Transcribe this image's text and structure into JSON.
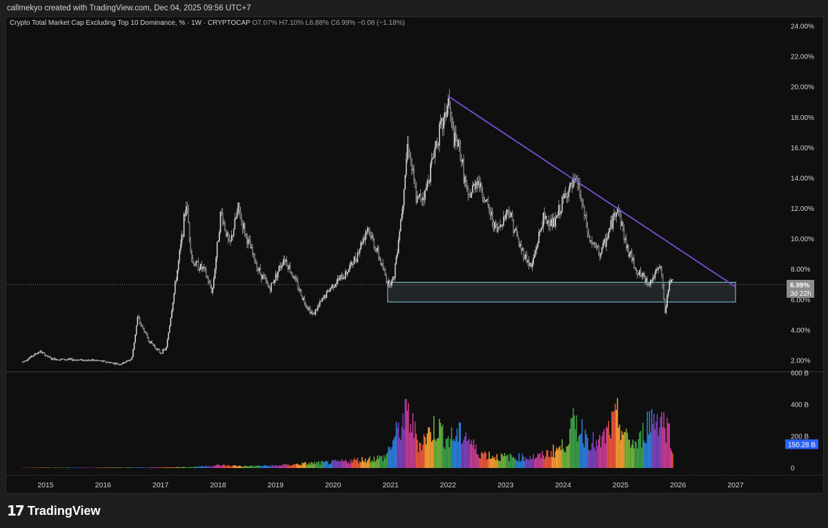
{
  "header": {
    "credit": "callmekyo created with TradingView.com, Dec 04, 2025 09:56 UTC+7"
  },
  "legend": {
    "title": "Crypto Total Market Cap Excluding Top 10 Dominance, % · 1W · CRYPTOCAP",
    "o_key": "O",
    "o_val": "7.07%",
    "h_key": "H",
    "h_val": "7.10%",
    "l_key": "L",
    "l_val": "6.88%",
    "c_key": "C",
    "c_val": "6.99%",
    "change": "−0.08 (−1.18%)"
  },
  "price_badge": {
    "value": "6.99%",
    "countdown": "3d 22h"
  },
  "volume_badge": {
    "value": "150.28 B"
  },
  "footer": {
    "brand": "TradingView"
  },
  "colors": {
    "background": "#0f0f0f",
    "candles": "#c8c8c8",
    "trendline": "#7b4fd6",
    "zone_border": "#7fd3e6",
    "zone_fill": "#2b2f31",
    "badge_price": "#8c8c8c",
    "badge_volume": "#2962ff",
    "volume_palette": [
      "#7b3fb5",
      "#c13a8f",
      "#e5533d",
      "#f29a2e",
      "#6fae3a",
      "#3a9a4a",
      "#2a7bd6"
    ]
  },
  "chart_data": {
    "type": "candlestick",
    "title": "Crypto Total Market Cap Excluding Top 10 Dominance, %",
    "interval": "1W",
    "price_axis": {
      "ticks": [
        "24.00%",
        "22.00%",
        "20.00%",
        "18.00%",
        "16.00%",
        "14.00%",
        "12.00%",
        "10.00%",
        "8.00%",
        "6.00%",
        "4.00%",
        "2.00%"
      ],
      "ylim": [
        1.0,
        24.6
      ]
    },
    "volume_axis": {
      "ticks": [
        "600 B",
        "400 B",
        "200 B",
        "0"
      ],
      "ylim": [
        0,
        610
      ]
    },
    "time_axis": {
      "ticks": [
        "2015",
        "2016",
        "2017",
        "2018",
        "2019",
        "2020",
        "2021",
        "2022",
        "2023",
        "2024",
        "2025",
        "2026",
        "2027"
      ]
    },
    "price_path": [
      [
        2014.6,
        1.9
      ],
      [
        2014.9,
        2.6
      ],
      [
        2015.1,
        2.1
      ],
      [
        2015.5,
        2.05
      ],
      [
        2015.9,
        2.0
      ],
      [
        2016.3,
        1.75
      ],
      [
        2016.5,
        2.1
      ],
      [
        2016.6,
        4.8
      ],
      [
        2016.8,
        3.3
      ],
      [
        2017.0,
        2.5
      ],
      [
        2017.1,
        2.8
      ],
      [
        2017.2,
        5.5
      ],
      [
        2017.35,
        9.5
      ],
      [
        2017.45,
        12.4
      ],
      [
        2017.55,
        8.5
      ],
      [
        2017.75,
        8.0
      ],
      [
        2017.9,
        6.5
      ],
      [
        2018.05,
        11.8
      ],
      [
        2018.2,
        9.5
      ],
      [
        2018.35,
        12.0
      ],
      [
        2018.5,
        10.0
      ],
      [
        2018.7,
        8.0
      ],
      [
        2018.9,
        6.7
      ],
      [
        2019.15,
        8.8
      ],
      [
        2019.35,
        7.2
      ],
      [
        2019.5,
        5.9
      ],
      [
        2019.65,
        5.0
      ],
      [
        2019.85,
        6.2
      ],
      [
        2020.0,
        7.0
      ],
      [
        2020.2,
        7.6
      ],
      [
        2020.4,
        8.8
      ],
      [
        2020.6,
        10.8
      ],
      [
        2020.8,
        8.8
      ],
      [
        2020.95,
        7.1
      ],
      [
        2021.05,
        7.3
      ],
      [
        2021.2,
        12.0
      ],
      [
        2021.3,
        16.5
      ],
      [
        2021.45,
        12.5
      ],
      [
        2021.6,
        13.0
      ],
      [
        2021.8,
        16.5
      ],
      [
        2021.95,
        18.0
      ],
      [
        2022.0,
        19.2
      ],
      [
        2022.1,
        16.5
      ],
      [
        2022.2,
        16.0
      ],
      [
        2022.35,
        12.5
      ],
      [
        2022.5,
        14.0
      ],
      [
        2022.7,
        12.0
      ],
      [
        2022.85,
        10.5
      ],
      [
        2023.05,
        12.0
      ],
      [
        2023.25,
        9.5
      ],
      [
        2023.45,
        8.1
      ],
      [
        2023.65,
        11.3
      ],
      [
        2023.85,
        11.0
      ],
      [
        2024.05,
        13.0
      ],
      [
        2024.25,
        13.8
      ],
      [
        2024.45,
        10.0
      ],
      [
        2024.65,
        9.0
      ],
      [
        2024.8,
        10.5
      ],
      [
        2024.95,
        12.2
      ],
      [
        2025.1,
        9.5
      ],
      [
        2025.3,
        7.8
      ],
      [
        2025.5,
        7.1
      ],
      [
        2025.7,
        8.2
      ],
      [
        2025.78,
        5.0
      ],
      [
        2025.85,
        7.4
      ],
      [
        2025.92,
        6.99
      ]
    ],
    "volume_path": [
      [
        2014.6,
        2
      ],
      [
        2016.5,
        3
      ],
      [
        2017.5,
        6
      ],
      [
        2018.0,
        18
      ],
      [
        2018.5,
        12
      ],
      [
        2019.0,
        16
      ],
      [
        2019.5,
        28
      ],
      [
        2020.0,
        38
      ],
      [
        2020.5,
        55
      ],
      [
        2020.9,
        70
      ],
      [
        2021.1,
        220
      ],
      [
        2021.3,
        360
      ],
      [
        2021.5,
        160
      ],
      [
        2021.8,
        280
      ],
      [
        2022.0,
        190
      ],
      [
        2022.3,
        230
      ],
      [
        2022.5,
        110
      ],
      [
        2022.8,
        75
      ],
      [
        2023.2,
        70
      ],
      [
        2023.6,
        75
      ],
      [
        2024.0,
        140
      ],
      [
        2024.2,
        300
      ],
      [
        2024.6,
        140
      ],
      [
        2024.95,
        330
      ],
      [
        2025.1,
        190
      ],
      [
        2025.3,
        150
      ],
      [
        2025.5,
        320
      ],
      [
        2025.7,
        340
      ],
      [
        2025.85,
        240
      ],
      [
        2025.92,
        150
      ]
    ],
    "annotations": {
      "trendline": {
        "from": [
          2022.0,
          19.4
        ],
        "to": [
          2027.0,
          6.85
        ]
      },
      "support_zone": {
        "x": [
          2020.95,
          2027.0
        ],
        "y": [
          5.85,
          7.15
        ]
      },
      "last_price_line": 6.99
    }
  }
}
